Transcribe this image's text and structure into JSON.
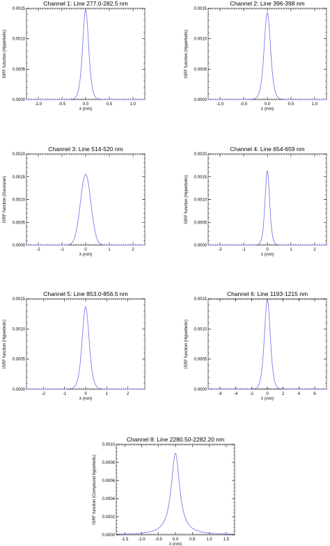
{
  "chart_data": [
    {
      "type": "line",
      "title": "Channel 1: Line 277.0-282.5 nm",
      "xlabel": "λ (nm)",
      "ylabel": "ISRF function (Hyperbolic)",
      "xlim": [
        -1.25,
        1.25
      ],
      "ylim": [
        0,
        0.0015
      ],
      "xticks": [
        "-1.0",
        "-0.5",
        "0.0",
        "0.5",
        "1.0"
      ],
      "xtick_values": [
        -1,
        -0.5,
        0,
        0.5,
        1
      ],
      "yticks": [
        "0.0000",
        "0.0005",
        "0.0010",
        "0.0015"
      ],
      "ytick_values": [
        0,
        0.0005,
        0.001,
        0.0015
      ],
      "series": [
        {
          "model": "hyperbolic",
          "peak": 0.00148,
          "width": 0.085,
          "color": "#7b7bf0"
        }
      ]
    },
    {
      "type": "line",
      "title": "Channel 2: Line 396-398 nm",
      "xlabel": "λ (nm)",
      "ylabel": "ISRF function (Hyperbolic)",
      "xlim": [
        -1.25,
        1.25
      ],
      "ylim": [
        0,
        0.0015
      ],
      "xticks": [
        "-1.0",
        "-0.5",
        "0.0",
        "0.5",
        "1.0"
      ],
      "xtick_values": [
        -1,
        -0.5,
        0,
        0.5,
        1
      ],
      "yticks": [
        "0.0000",
        "0.0005",
        "0.0010",
        "0.0015"
      ],
      "ytick_values": [
        0,
        0.0005,
        0.001,
        0.0015
      ],
      "series": [
        {
          "model": "hyperbolic",
          "peak": 0.00143,
          "width": 0.09,
          "color": "#7b7bf0"
        }
      ]
    },
    {
      "type": "line",
      "title": "Channel 3: Line 514-520 nm",
      "xlabel": "λ (nm)",
      "ylabel": "ISRF function (Gaussian)",
      "xlim": [
        -2.5,
        2.5
      ],
      "ylim": [
        0,
        0.002
      ],
      "xticks": [
        "-2",
        "-1",
        "0",
        "1",
        "2"
      ],
      "xtick_values": [
        -2,
        -1,
        0,
        1,
        2
      ],
      "yticks": [
        "0.0000",
        "0.0005",
        "0.0010",
        "0.0015",
        "0.0020"
      ],
      "ytick_values": [
        0,
        0.0005,
        0.001,
        0.0015,
        0.002
      ],
      "series": [
        {
          "model": "gaussian",
          "peak": 0.00155,
          "width": 0.22,
          "color": "#7b7bf0"
        }
      ]
    },
    {
      "type": "line",
      "title": "Channel 4: Line 654-659 nm",
      "xlabel": "λ (nm)",
      "ylabel": "ISRF function (Hyperbolic)",
      "xlim": [
        -2.5,
        2.5
      ],
      "ylim": [
        0,
        0.002
      ],
      "xticks": [
        "-2",
        "-1",
        "0",
        "1",
        "2"
      ],
      "xtick_values": [
        -2,
        -1,
        0,
        1,
        2
      ],
      "yticks": [
        "0.0000",
        "0.0005",
        "0.0010",
        "0.0015",
        "0.0020"
      ],
      "ytick_values": [
        0,
        0.0005,
        0.001,
        0.0015,
        0.002
      ],
      "series": [
        {
          "model": "hyperbolic",
          "peak": 0.00163,
          "width": 0.13,
          "color": "#7b7bf0"
        }
      ]
    },
    {
      "type": "line",
      "title": "Channel 5: Line 853.0-856.5 nm",
      "xlabel": "λ (nm)",
      "ylabel": "ISRF function (Hyperbolic)",
      "xlim": [
        -2.8,
        2.8
      ],
      "ylim": [
        0,
        0.0015
      ],
      "xticks": [
        "-2",
        "-1",
        "0",
        "1",
        "2"
      ],
      "xtick_values": [
        -2,
        -1,
        0,
        1,
        2
      ],
      "yticks": [
        "0.0000",
        "0.0005",
        "0.0010",
        "0.0015"
      ],
      "ytick_values": [
        0,
        0.0005,
        0.001,
        0.0015
      ],
      "series": [
        {
          "model": "hyperbolic",
          "peak": 0.00137,
          "width": 0.22,
          "color": "#7b7bf0"
        }
      ]
    },
    {
      "type": "line",
      "title": "Channel 6: Line 1193-1215 nm",
      "xlabel": "λ (nm)",
      "ylabel": "ISRF function (Hyperbolic)",
      "xlim": [
        -7.5,
        7.5
      ],
      "ylim": [
        0,
        0.0015
      ],
      "xticks": [
        "-6",
        "-4",
        "-2",
        "0",
        "2",
        "4",
        "6"
      ],
      "xtick_values": [
        -6,
        -4,
        -2,
        0,
        2,
        4,
        6
      ],
      "yticks": [
        "0.0000",
        "0.0005",
        "0.0010",
        "0.0015"
      ],
      "ytick_values": [
        0,
        0.0005,
        0.001,
        0.0015
      ],
      "series": [
        {
          "model": "hyperbolic",
          "peak": 0.00148,
          "width": 0.5,
          "color": "#7b7bf0"
        }
      ]
    },
    {
      "type": "line",
      "title": "Channel 8: Line 2280.50-2282.20 nm",
      "xlabel": "λ (nm)",
      "ylabel": "ISRF function (Compound hyperbolic)",
      "xlim": [
        -1.75,
        1.75
      ],
      "ylim": [
        0,
        0.001
      ],
      "xticks": [
        "-1.5",
        "-1.0",
        "-0.5",
        "0.0",
        "0.5",
        "1.0",
        "1.5"
      ],
      "xtick_values": [
        -1.5,
        -1,
        -0.5,
        0,
        0.5,
        1,
        1.5
      ],
      "yticks": [
        "0.0000",
        "0.0002",
        "0.0004",
        "0.0006",
        "0.0008",
        "0.0010"
      ],
      "ytick_values": [
        0,
        0.0002,
        0.0004,
        0.0006,
        0.0008,
        0.001
      ],
      "series": [
        {
          "model": "lorentzian",
          "peak": 0.0009,
          "width": 0.15,
          "color": "#7b7bf0"
        }
      ]
    }
  ]
}
